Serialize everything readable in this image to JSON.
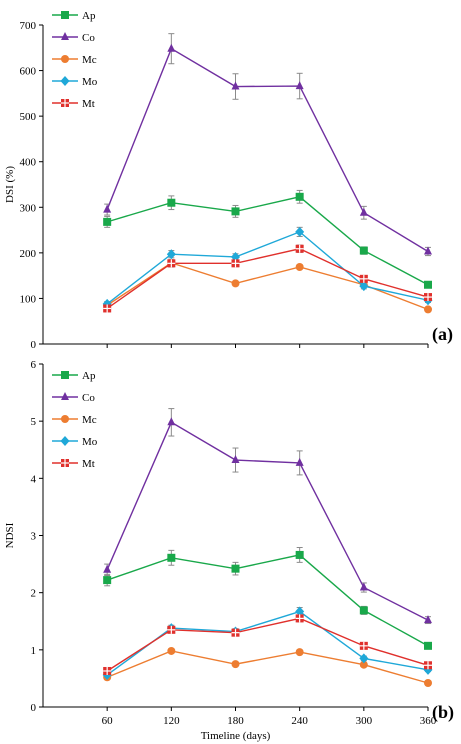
{
  "chart_data": [
    {
      "type": "line",
      "panel_label": "(a)",
      "ylabel": "DSI (%)",
      "xlabel": "",
      "x": [
        60,
        120,
        180,
        240,
        300,
        360
      ],
      "xlim": [
        0,
        360
      ],
      "ylim": [
        0,
        700
      ],
      "yticks": [
        0,
        100,
        200,
        300,
        400,
        500,
        600,
        700
      ],
      "x_tick_labels_shown": false,
      "legend_position": "top-left",
      "series": [
        {
          "name": "Ap",
          "color": "#19a84a",
          "marker": "square",
          "values": [
            268,
            310,
            291,
            323,
            205,
            130
          ],
          "errors": [
            12,
            15,
            13,
            14,
            8,
            7
          ]
        },
        {
          "name": "Co",
          "color": "#7030a0",
          "marker": "triangle",
          "values": [
            295,
            648,
            565,
            566,
            288,
            203
          ],
          "errors": [
            12,
            33,
            28,
            28,
            14,
            9
          ]
        },
        {
          "name": "Mc",
          "color": "#ed7d31",
          "marker": "circle",
          "values": [
            85,
            178,
            133,
            169,
            130,
            76
          ],
          "errors": [
            0,
            0,
            0,
            0,
            0,
            0
          ]
        },
        {
          "name": "Mo",
          "color": "#1fa8d8",
          "marker": "diamond",
          "values": [
            88,
            197,
            191,
            246,
            127,
            96
          ],
          "errors": [
            5,
            8,
            7,
            10,
            6,
            5
          ]
        },
        {
          "name": "Mt",
          "color": "#e0302c",
          "marker": "crossed-square",
          "values": [
            78,
            177,
            177,
            209,
            143,
            103
          ],
          "errors": [
            4,
            8,
            7,
            8,
            6,
            4
          ]
        }
      ]
    },
    {
      "type": "line",
      "panel_label": "(b)",
      "ylabel": "NDSI",
      "xlabel": "Timeline (days)",
      "x": [
        60,
        120,
        180,
        240,
        300,
        360
      ],
      "xlim": [
        0,
        360
      ],
      "ylim": [
        0,
        6
      ],
      "yticks": [
        0,
        1,
        2,
        3,
        4,
        5,
        6
      ],
      "x_tick_labels_shown": true,
      "legend_position": "top-left",
      "series": [
        {
          "name": "Ap",
          "color": "#19a84a",
          "marker": "square",
          "values": [
            2.22,
            2.61,
            2.42,
            2.66,
            1.69,
            1.07
          ],
          "errors": [
            0.1,
            0.13,
            0.11,
            0.13,
            0.07,
            0.05
          ]
        },
        {
          "name": "Co",
          "color": "#7030a0",
          "marker": "triangle",
          "values": [
            2.4,
            4.98,
            4.32,
            4.27,
            2.09,
            1.52
          ],
          "errors": [
            0.1,
            0.24,
            0.21,
            0.21,
            0.08,
            0.06
          ]
        },
        {
          "name": "Mc",
          "color": "#ed7d31",
          "marker": "circle",
          "values": [
            0.52,
            0.98,
            0.75,
            0.96,
            0.74,
            0.42
          ],
          "errors": [
            0,
            0,
            0,
            0,
            0,
            0
          ]
        },
        {
          "name": "Mo",
          "color": "#1fa8d8",
          "marker": "diamond",
          "values": [
            0.56,
            1.38,
            1.32,
            1.67,
            0.85,
            0.65
          ],
          "errors": [
            0.03,
            0.05,
            0.05,
            0.07,
            0.04,
            0.03
          ]
        },
        {
          "name": "Mt",
          "color": "#e0302c",
          "marker": "crossed-square",
          "values": [
            0.63,
            1.35,
            1.3,
            1.55,
            1.07,
            0.73
          ],
          "errors": [
            0.03,
            0.05,
            0.05,
            0.06,
            0.05,
            0.03
          ]
        }
      ]
    }
  ]
}
